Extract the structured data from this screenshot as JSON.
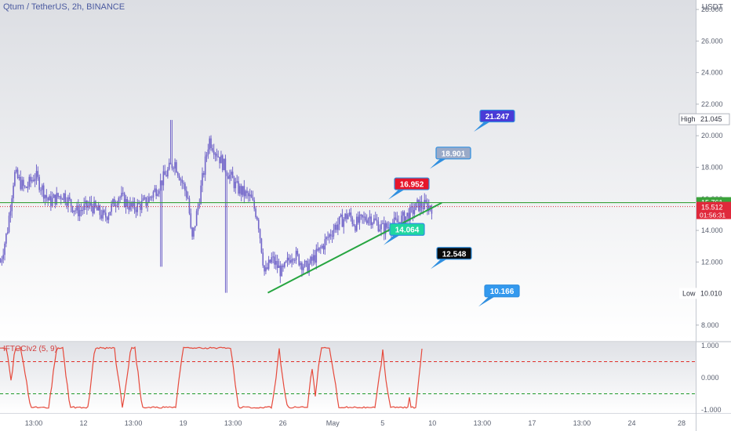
{
  "header": {
    "title": "Qtum / TetherUS, 2h, BINANCE",
    "currency": "USDT"
  },
  "indicator": {
    "title": "IFTCCIv2 (5, 9)"
  },
  "markers": {
    "high_label": "High",
    "high_value": "21.045",
    "low_label": "Low",
    "low_value": "10.010",
    "last_price": "15.512",
    "countdown": "01:56:31",
    "level": "15.761"
  },
  "colors": {
    "candles": "#7266c9",
    "support": "#26a540",
    "level_line": "#3ba33b",
    "indicator": "#e64a3c",
    "last_price": "#e0293b"
  },
  "chart_data": [
    {
      "type": "candlestick",
      "title": "Qtum / TetherUS, 2h, BINANCE",
      "x_ticks": [
        "13:00",
        "12",
        "13:00",
        "19",
        "13:00",
        "26",
        "May",
        "5",
        "10",
        "13:00",
        "17",
        "13:00",
        "24",
        "28"
      ],
      "y_ticks": [
        "8.000",
        "10.000",
        "12.000",
        "14.000",
        "16.000",
        "18.000",
        "20.000",
        "22.000",
        "24.000",
        "26.000",
        "28.000"
      ],
      "ylim": [
        7,
        28.6
      ],
      "price_path": [
        [
          0,
          12.0
        ],
        [
          0.01,
          14.0
        ],
        [
          0.02,
          17.6
        ],
        [
          0.035,
          16.6
        ],
        [
          0.05,
          17.5
        ],
        [
          0.07,
          15.8
        ],
        [
          0.09,
          16.3
        ],
        [
          0.11,
          15.2
        ],
        [
          0.13,
          15.6
        ],
        [
          0.15,
          14.8
        ],
        [
          0.17,
          16.2
        ],
        [
          0.19,
          15.4
        ],
        [
          0.21,
          15.8
        ],
        [
          0.23,
          17.0
        ],
        [
          0.25,
          18.4
        ],
        [
          0.27,
          16.0
        ],
        [
          0.275,
          13.2
        ],
        [
          0.285,
          15.8
        ],
        [
          0.3,
          19.8
        ],
        [
          0.32,
          18.2
        ],
        [
          0.34,
          16.7
        ],
        [
          0.36,
          16.0
        ],
        [
          0.37,
          14.8
        ],
        [
          0.38,
          11.2
        ],
        [
          0.39,
          12.2
        ],
        [
          0.405,
          11.3
        ],
        [
          0.42,
          12.6
        ],
        [
          0.44,
          11.6
        ],
        [
          0.46,
          12.8
        ],
        [
          0.48,
          14.2
        ],
        [
          0.5,
          15.0
        ],
        [
          0.51,
          14.4
        ],
        [
          0.53,
          14.9
        ],
        [
          0.55,
          14.1
        ],
        [
          0.57,
          14.5
        ],
        [
          0.59,
          15.1
        ],
        [
          0.6,
          15.6
        ],
        [
          0.62,
          15.5
        ]
      ],
      "support_line": [
        [
          0.385,
          10.05
        ],
        [
          0.635,
          15.75
        ]
      ],
      "horizontal_level": 15.761,
      "last_price": 15.512,
      "high": 21.045,
      "low": 10.01,
      "targets": [
        {
          "label": "21.247",
          "value": 21.247,
          "color": "#4a3bd6"
        },
        {
          "label": "18.901",
          "value": 18.901,
          "color": "#9aaac8"
        },
        {
          "label": "16.952",
          "value": 16.952,
          "color": "#e6152a"
        },
        {
          "label": "14.064",
          "value": 14.064,
          "color": "#1fd7a1"
        },
        {
          "label": "12.548",
          "value": 12.548,
          "color": "#0a0a0a"
        },
        {
          "label": "10.166",
          "value": 10.166,
          "color": "#3399ee"
        }
      ]
    },
    {
      "type": "line",
      "title": "IFTCCIv2 (5, 9)",
      "y_ticks": [
        "1.000",
        "0.000",
        "-1.000"
      ],
      "ylim": [
        -1.1,
        1.1
      ],
      "upper_level": 0.5,
      "lower_level": -0.5
    }
  ]
}
